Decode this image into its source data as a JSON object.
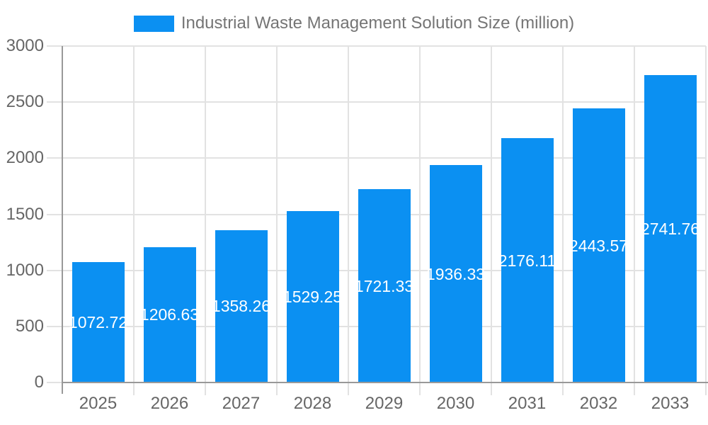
{
  "legend": {
    "label": "Industrial Waste Management Solution Size (million)"
  },
  "chart_data": {
    "type": "bar",
    "title": "Industrial Waste Management Solution Size (million)",
    "categories": [
      "2025",
      "2026",
      "2027",
      "2028",
      "2029",
      "2030",
      "2031",
      "2032",
      "2033"
    ],
    "values": [
      1072.72,
      1206.63,
      1358.26,
      1529.25,
      1721.33,
      1936.33,
      2176.11,
      2443.57,
      2741.76
    ],
    "value_labels": [
      "1072.72",
      "1206.63",
      "1358.26",
      "1529.25",
      "1721.33",
      "1936.33",
      "2176.11",
      "2443.57",
      "2741.76"
    ],
    "xlabel": "",
    "ylabel": "",
    "ylim": [
      0,
      3000
    ],
    "yticks": [
      "0",
      "500",
      "1000",
      "1500",
      "2000",
      "2500",
      "3000"
    ],
    "grid": true,
    "legend_position": "top-center",
    "colors": {
      "bar": "#0b90f2",
      "grid": "#e2e2e2",
      "axis": "#999999",
      "tick_text": "#666666",
      "title_text": "#757575",
      "bar_label": "#ffffff",
      "background": "#ffffff"
    }
  }
}
